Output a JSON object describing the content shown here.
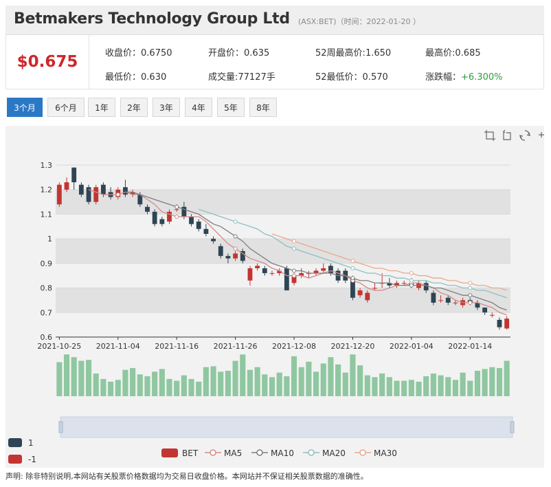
{
  "header": {
    "title": "Betmakers Technology Group Ltd",
    "meta": "(ASX:BET)（时间：2022-01-20 ）"
  },
  "quote": {
    "price": "$0.675",
    "close_label": "收盘价：",
    "close": "0.6750",
    "open_label": "开盘价：",
    "open": "0.635",
    "high52_label": "52周最高价:",
    "high52": "1.650",
    "high_label": "最高价:",
    "high": "0.685",
    "low_label": "最低价：",
    "low": "0.630",
    "volume_label": "成交量:",
    "volume": "77127手",
    "low52_label": "52最低价：",
    "low52": "0.570",
    "change_label": "涨跌幅：",
    "change": "+6.300%"
  },
  "ranges": [
    "3个月",
    "6个月",
    "1年",
    "2年",
    "3年",
    "4年",
    "5年",
    "8年"
  ],
  "active_range": "3个月",
  "toolbox": [
    "zoom-icon",
    "zoom-reset-icon",
    "restore-icon",
    "save-icon"
  ],
  "colors": {
    "up": "#c23531",
    "down": "#2f4554",
    "ma5": "#d48a8a",
    "ma10": "#7e7e7e",
    "ma20": "#8fbfbf",
    "ma30": "#e7a98d",
    "volume": "#8fc7a0",
    "band": "#e1e1e1"
  },
  "left_legend": [
    {
      "label": "1",
      "color": "#2f4554"
    },
    {
      "label": "-1",
      "color": "#c23531"
    }
  ],
  "legend": [
    "BET",
    "MA5",
    "MA10",
    "MA20",
    "MA30"
  ],
  "disclaimer": "声明: 除非特别说明,本网站有关股票价格数据均为交易日收盘价格。本网站并不保证相关股票数据的准确性。",
  "chart_data": {
    "type": "candlestick",
    "ylim": [
      0.6,
      1.3
    ],
    "yticks": [
      "0.6",
      "0.7",
      "0.8",
      "0.9",
      "1",
      "1.1",
      "1.2",
      "1.3"
    ],
    "xtick_labels": [
      "2021-10-25",
      "2021-11-04",
      "2021-11-16",
      "2021-11-26",
      "2021-12-08",
      "2021-12-20",
      "2022-01-04",
      "2022-01-14"
    ],
    "xtick_index": [
      0,
      8,
      16,
      24,
      32,
      40,
      48,
      56
    ],
    "candles": [
      [
        1.14,
        1.22,
        1.13,
        1.23
      ],
      [
        1.2,
        1.23,
        1.19,
        1.25
      ],
      [
        1.29,
        1.23,
        1.2,
        1.29
      ],
      [
        1.22,
        1.18,
        1.17,
        1.23
      ],
      [
        1.21,
        1.15,
        1.14,
        1.22
      ],
      [
        1.15,
        1.21,
        1.14,
        1.22
      ],
      [
        1.22,
        1.18,
        1.17,
        1.23
      ],
      [
        1.19,
        1.17,
        1.16,
        1.21
      ],
      [
        1.17,
        1.2,
        1.16,
        1.21
      ],
      [
        1.21,
        1.18,
        1.17,
        1.24
      ],
      [
        1.18,
        1.19,
        1.17,
        1.2
      ],
      [
        1.18,
        1.14,
        1.13,
        1.19
      ],
      [
        1.13,
        1.11,
        1.1,
        1.14
      ],
      [
        1.11,
        1.06,
        1.05,
        1.12
      ],
      [
        1.08,
        1.06,
        1.05,
        1.09
      ],
      [
        1.07,
        1.11,
        1.06,
        1.12
      ],
      [
        1.12,
        1.12,
        1.11,
        1.14
      ],
      [
        1.13,
        1.09,
        1.08,
        1.15
      ],
      [
        1.09,
        1.06,
        1.05,
        1.1
      ],
      [
        1.07,
        1.04,
        1.03,
        1.08
      ],
      [
        1.04,
        1.02,
        1.01,
        1.06
      ],
      [
        1.0,
        0.99,
        0.98,
        1.01
      ],
      [
        0.97,
        0.93,
        0.92,
        0.98
      ],
      [
        0.93,
        0.92,
        0.9,
        0.94
      ],
      [
        0.92,
        0.94,
        0.91,
        0.95
      ],
      [
        0.95,
        0.91,
        0.9,
        0.96
      ],
      [
        0.83,
        0.88,
        0.81,
        0.89
      ],
      [
        0.88,
        0.89,
        0.87,
        0.9
      ],
      [
        0.88,
        0.86,
        0.85,
        0.89
      ],
      [
        0.86,
        0.86,
        0.85,
        0.87
      ],
      [
        0.86,
        0.87,
        0.85,
        0.88
      ],
      [
        0.88,
        0.79,
        0.79,
        0.89
      ],
      [
        0.82,
        0.85,
        0.81,
        0.86
      ],
      [
        0.85,
        0.86,
        0.84,
        0.88
      ],
      [
        0.86,
        0.86,
        0.84,
        0.87
      ],
      [
        0.86,
        0.87,
        0.85,
        0.88
      ],
      [
        0.87,
        0.88,
        0.86,
        0.9
      ],
      [
        0.89,
        0.86,
        0.85,
        0.9
      ],
      [
        0.87,
        0.83,
        0.82,
        0.88
      ],
      [
        0.87,
        0.83,
        0.82,
        0.88
      ],
      [
        0.84,
        0.76,
        0.75,
        0.85
      ],
      [
        0.77,
        0.79,
        0.76,
        0.8
      ],
      [
        0.75,
        0.78,
        0.74,
        0.79
      ],
      [
        0.8,
        0.8,
        0.79,
        0.82
      ],
      [
        0.82,
        0.82,
        0.8,
        0.86
      ],
      [
        0.82,
        0.81,
        0.8,
        0.84
      ],
      [
        0.81,
        0.82,
        0.8,
        0.83
      ],
      [
        0.82,
        0.82,
        0.81,
        0.83
      ],
      [
        0.82,
        0.81,
        0.8,
        0.84
      ],
      [
        0.8,
        0.82,
        0.79,
        0.83
      ],
      [
        0.82,
        0.79,
        0.78,
        0.83
      ],
      [
        0.78,
        0.74,
        0.73,
        0.79
      ],
      [
        0.75,
        0.75,
        0.74,
        0.77
      ],
      [
        0.76,
        0.74,
        0.73,
        0.77
      ],
      [
        0.74,
        0.74,
        0.73,
        0.75
      ],
      [
        0.73,
        0.75,
        0.72,
        0.76
      ],
      [
        0.75,
        0.74,
        0.73,
        0.76
      ],
      [
        0.74,
        0.72,
        0.71,
        0.75
      ],
      [
        0.72,
        0.7,
        0.69,
        0.72
      ],
      [
        0.69,
        0.69,
        0.68,
        0.7
      ],
      [
        0.67,
        0.64,
        0.63,
        0.68
      ],
      [
        0.635,
        0.675,
        0.63,
        0.685
      ]
    ],
    "ma5": [
      null,
      null,
      null,
      null,
      1.2,
      1.19,
      1.18,
      1.18,
      1.18,
      1.19,
      1.18,
      1.18,
      1.16,
      1.14,
      1.11,
      1.1,
      1.09,
      1.09,
      1.09,
      1.09,
      1.07,
      1.04,
      1.01,
      0.98,
      0.96,
      0.94,
      0.92,
      0.91,
      0.9,
      0.88,
      0.87,
      0.85,
      0.85,
      0.85,
      0.84,
      0.85,
      0.86,
      0.87,
      0.86,
      0.85,
      0.83,
      0.82,
      0.8,
      0.79,
      0.79,
      0.8,
      0.81,
      0.81,
      0.82,
      0.82,
      0.81,
      0.8,
      0.78,
      0.77,
      0.75,
      0.74,
      0.74,
      0.74,
      0.73,
      0.72,
      0.7,
      0.69
    ],
    "ma10": [
      null,
      null,
      null,
      null,
      null,
      null,
      null,
      null,
      null,
      1.19,
      1.19,
      1.18,
      1.17,
      1.16,
      1.15,
      1.14,
      1.13,
      1.12,
      1.11,
      1.1,
      1.08,
      1.06,
      1.05,
      1.03,
      1.01,
      0.99,
      0.96,
      0.94,
      0.92,
      0.9,
      0.89,
      0.88,
      0.87,
      0.87,
      0.86,
      0.86,
      0.86,
      0.86,
      0.85,
      0.85,
      0.84,
      0.83,
      0.83,
      0.82,
      0.82,
      0.82,
      0.81,
      0.81,
      0.81,
      0.81,
      0.81,
      0.8,
      0.8,
      0.79,
      0.78,
      0.77,
      0.77,
      0.76,
      0.75,
      0.74,
      0.72,
      0.71
    ],
    "ma20": [
      null,
      null,
      null,
      null,
      null,
      null,
      null,
      null,
      null,
      null,
      null,
      null,
      null,
      null,
      null,
      null,
      null,
      null,
      null,
      1.12,
      1.11,
      1.1,
      1.09,
      1.08,
      1.07,
      1.06,
      1.05,
      1.04,
      1.02,
      1.01,
      0.99,
      0.97,
      0.96,
      0.95,
      0.94,
      0.93,
      0.92,
      0.91,
      0.9,
      0.89,
      0.88,
      0.87,
      0.86,
      0.86,
      0.85,
      0.85,
      0.84,
      0.84,
      0.83,
      0.83,
      0.83,
      0.82,
      0.82,
      0.81,
      0.81,
      0.8,
      0.8,
      0.79,
      0.79,
      0.78,
      0.77,
      0.76
    ],
    "ma30": [
      null,
      null,
      null,
      null,
      null,
      null,
      null,
      null,
      null,
      null,
      null,
      null,
      null,
      null,
      null,
      null,
      null,
      null,
      null,
      null,
      null,
      null,
      null,
      null,
      null,
      null,
      null,
      null,
      null,
      1.02,
      1.01,
      1.0,
      0.99,
      0.98,
      0.97,
      0.96,
      0.95,
      0.94,
      0.93,
      0.92,
      0.91,
      0.9,
      0.89,
      0.88,
      0.88,
      0.87,
      0.87,
      0.86,
      0.86,
      0.85,
      0.85,
      0.84,
      0.84,
      0.83,
      0.83,
      0.82,
      0.82,
      0.81,
      0.81,
      0.8,
      0.8,
      0.79
    ],
    "volume": [
      75,
      92,
      86,
      78,
      80,
      50,
      38,
      32,
      36,
      58,
      62,
      48,
      44,
      54,
      60,
      38,
      34,
      46,
      38,
      32,
      64,
      66,
      54,
      56,
      78,
      92,
      58,
      64,
      48,
      42,
      52,
      44,
      88,
      64,
      76,
      54,
      72,
      86,
      70,
      52,
      92,
      68,
      46,
      42,
      50,
      42,
      34,
      34,
      36,
      32,
      44,
      50,
      46,
      42,
      36,
      52,
      34,
      56,
      60,
      64,
      62,
      78
    ],
    "volume_max": 100
  }
}
